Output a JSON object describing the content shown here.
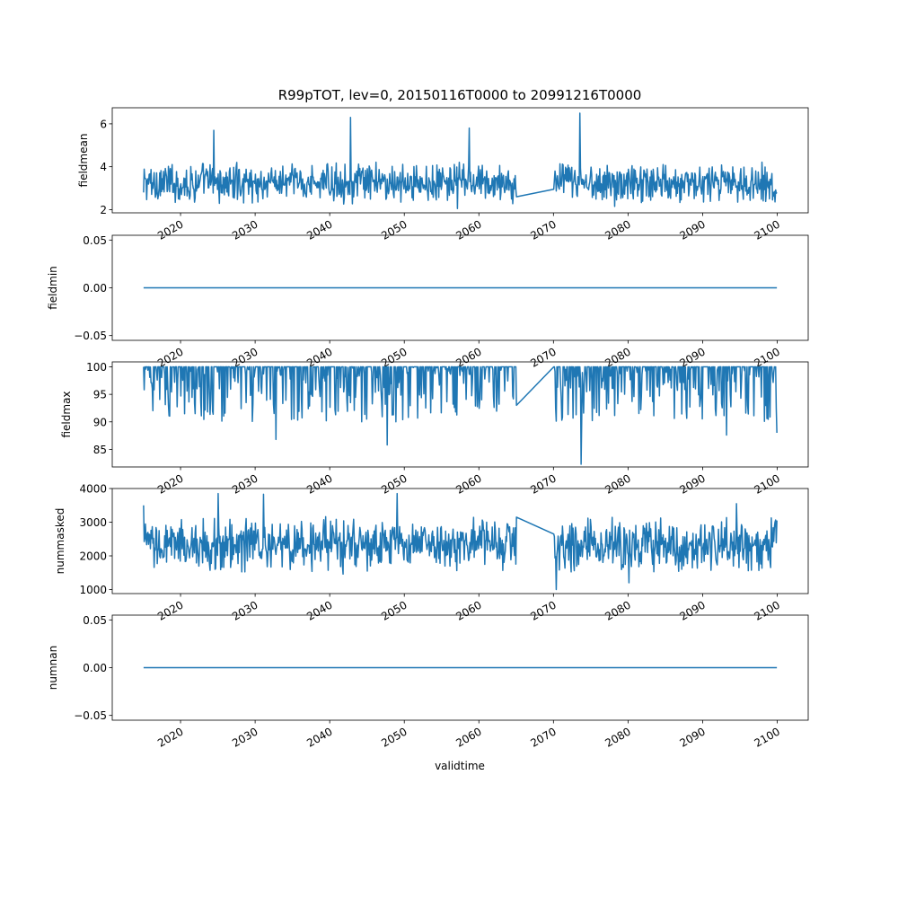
{
  "chart_data": {
    "type": "line",
    "title": "R99pTOT, lev=0, 20150116T0000 to 20991216T0000",
    "xlabel": "validtime",
    "x_range": [
      "2015-01-16",
      "2099-12-16"
    ],
    "x_ticks": [
      "2020",
      "2030",
      "2040",
      "2050",
      "2060",
      "2070",
      "2080",
      "2090",
      "2100"
    ],
    "x_tick_labels_rotated": true,
    "gap": [
      "2065-01-16",
      "2070-01-16"
    ],
    "line_color": "#1f77b4",
    "panels": [
      {
        "ylabel": "fieldmean",
        "ylim": [
          1.85,
          6.75
        ],
        "yticks": [
          "2",
          "4",
          "6"
        ],
        "series": {
          "kind": "noisy",
          "baseline": 3.3,
          "low": 2.2,
          "high": 4.3,
          "spikes": [
            {
              "date": "2024-06",
              "value": 5.7
            },
            {
              "date": "2042-10",
              "value": 6.3
            },
            {
              "date": "2058-09",
              "value": 5.8
            },
            {
              "date": "2073-07",
              "value": 6.5
            },
            {
              "date": "2057-02",
              "value": 2.05
            },
            {
              "date": "2078-03",
              "value": 2.15
            }
          ],
          "gap_line": [
            {
              "date": "2065-01",
              "value": 2.6
            },
            {
              "date": "2070-01",
              "value": 2.95
            }
          ],
          "first": 2.8,
          "last": 2.8
        }
      },
      {
        "ylabel": "fieldmin",
        "ylim": [
          -0.055,
          0.055
        ],
        "yticks": [
          "0.05",
          "0.00",
          "−0.05"
        ],
        "series": {
          "kind": "constant",
          "value": 0.0
        }
      },
      {
        "ylabel": "fieldmax",
        "ylim": [
          81.8,
          100.9
        ],
        "yticks": [
          "100",
          "95",
          "90",
          "85"
        ],
        "series": {
          "kind": "noisy-capped",
          "baseline": 98.5,
          "low": 90.0,
          "high": 100.0,
          "spikes": [
            {
              "date": "2032-10",
              "value": 86.8
            },
            {
              "date": "2047-09",
              "value": 85.8
            },
            {
              "date": "2073-09",
              "value": 82.3
            },
            {
              "date": "2093-03",
              "value": 87.6
            }
          ],
          "gap_line": [
            {
              "date": "2065-01",
              "value": 93.0
            },
            {
              "date": "2070-01",
              "value": 100.0
            }
          ],
          "first": 100.0,
          "last": 88.0
        }
      },
      {
        "ylabel": "nummasked",
        "ylim": [
          880,
          4000
        ],
        "yticks": [
          "4000",
          "3000",
          "2000",
          "1000"
        ],
        "series": {
          "kind": "noisy",
          "baseline": 2300,
          "low": 1450,
          "high": 3200,
          "spikes": [
            {
              "date": "2025-01",
              "value": 3850
            },
            {
              "date": "2031-02",
              "value": 3830
            },
            {
              "date": "2049-01",
              "value": 3850
            },
            {
              "date": "2094-07",
              "value": 3550
            },
            {
              "date": "2070-05",
              "value": 1000
            },
            {
              "date": "2080-02",
              "value": 1200
            }
          ],
          "gap_line": [
            {
              "date": "2065-01",
              "value": 3150
            },
            {
              "date": "2070-01",
              "value": 2650
            }
          ],
          "first": 3500,
          "last": 3050
        }
      },
      {
        "ylabel": "numnan",
        "ylim": [
          -0.055,
          0.055
        ],
        "yticks": [
          "0.05",
          "0.00",
          "−0.05"
        ],
        "series": {
          "kind": "constant",
          "value": 0.0
        }
      }
    ]
  }
}
